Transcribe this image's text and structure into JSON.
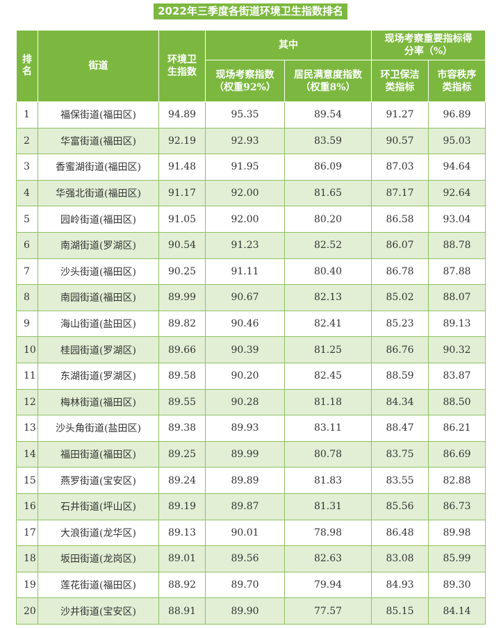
{
  "title": "2022年三季度各街道环境卫生指数排名",
  "headers": {
    "rank": "排名",
    "street": "街道",
    "index": "环境卫生指数",
    "among": "其中",
    "key_indicators": "现场考察重要指标得分率（%）",
    "onsite": "现场考察指数（权重92%）",
    "satisfaction": "居民满意度指数（权重8%）",
    "cleaning": "环卫保洁类指标",
    "order": "市容秩序类指标"
  },
  "rows": [
    {
      "rank": "1",
      "street": "福保街道(福田区)",
      "index": "94.89",
      "onsite": "95.35",
      "satisfaction": "89.54",
      "cleaning": "91.27",
      "order": "96.89"
    },
    {
      "rank": "2",
      "street": "华富街道(福田区)",
      "index": "92.19",
      "onsite": "92.93",
      "satisfaction": "83.59",
      "cleaning": "90.57",
      "order": "95.03"
    },
    {
      "rank": "3",
      "street": "香蜜湖街道(福田区)",
      "index": "91.48",
      "onsite": "91.95",
      "satisfaction": "86.09",
      "cleaning": "87.03",
      "order": "94.64"
    },
    {
      "rank": "4",
      "street": "华强北街道(福田区)",
      "index": "91.17",
      "onsite": "92.00",
      "satisfaction": "81.65",
      "cleaning": "87.17",
      "order": "92.64"
    },
    {
      "rank": "5",
      "street": "园岭街道(福田区)",
      "index": "91.05",
      "onsite": "92.00",
      "satisfaction": "80.20",
      "cleaning": "86.58",
      "order": "93.04"
    },
    {
      "rank": "6",
      "street": "南湖街道(罗湖区)",
      "index": "90.54",
      "onsite": "91.23",
      "satisfaction": "82.52",
      "cleaning": "86.07",
      "order": "88.78"
    },
    {
      "rank": "7",
      "street": "沙头街道(福田区)",
      "index": "90.25",
      "onsite": "91.11",
      "satisfaction": "80.40",
      "cleaning": "86.78",
      "order": "87.88"
    },
    {
      "rank": "8",
      "street": "南园街道(福田区)",
      "index": "89.99",
      "onsite": "90.67",
      "satisfaction": "82.13",
      "cleaning": "85.02",
      "order": "88.07"
    },
    {
      "rank": "9",
      "street": "海山街道(盐田区)",
      "index": "89.82",
      "onsite": "90.46",
      "satisfaction": "82.41",
      "cleaning": "85.23",
      "order": "89.13"
    },
    {
      "rank": "10",
      "street": "桂园街道(罗湖区)",
      "index": "89.66",
      "onsite": "90.39",
      "satisfaction": "81.25",
      "cleaning": "86.76",
      "order": "90.32"
    },
    {
      "rank": "11",
      "street": "东湖街道(罗湖区)",
      "index": "89.58",
      "onsite": "90.20",
      "satisfaction": "82.45",
      "cleaning": "88.59",
      "order": "83.87"
    },
    {
      "rank": "12",
      "street": "梅林街道(福田区)",
      "index": "89.55",
      "onsite": "90.28",
      "satisfaction": "81.18",
      "cleaning": "84.34",
      "order": "88.50"
    },
    {
      "rank": "13",
      "street": "沙头角街道(盐田区)",
      "index": "89.38",
      "onsite": "89.93",
      "satisfaction": "83.11",
      "cleaning": "88.47",
      "order": "86.21"
    },
    {
      "rank": "14",
      "street": "福田街道(福田区)",
      "index": "89.25",
      "onsite": "89.99",
      "satisfaction": "80.78",
      "cleaning": "83.75",
      "order": "86.69"
    },
    {
      "rank": "15",
      "street": "燕罗街道(宝安区)",
      "index": "89.24",
      "onsite": "89.89",
      "satisfaction": "81.83",
      "cleaning": "83.55",
      "order": "82.88"
    },
    {
      "rank": "16",
      "street": "石井街道(坪山区)",
      "index": "89.19",
      "onsite": "89.87",
      "satisfaction": "81.31",
      "cleaning": "85.56",
      "order": "86.73"
    },
    {
      "rank": "17",
      "street": "大浪街道(龙华区)",
      "index": "89.13",
      "onsite": "90.01",
      "satisfaction": "78.98",
      "cleaning": "86.48",
      "order": "89.98"
    },
    {
      "rank": "18",
      "street": "坂田街道(龙岗区)",
      "index": "89.01",
      "onsite": "89.56",
      "satisfaction": "82.63",
      "cleaning": "83.08",
      "order": "85.99"
    },
    {
      "rank": "19",
      "street": "莲花街道(福田区)",
      "index": "88.92",
      "onsite": "89.70",
      "satisfaction": "79.94",
      "cleaning": "84.93",
      "order": "89.30"
    },
    {
      "rank": "20",
      "street": "沙井街道(宝安区)",
      "index": "88.91",
      "onsite": "89.90",
      "satisfaction": "77.57",
      "cleaning": "85.15",
      "order": "84.14"
    }
  ],
  "colors": {
    "header_green": "#7cb83f",
    "row_alt": "#e2efd5",
    "border": "#8fbf60"
  }
}
